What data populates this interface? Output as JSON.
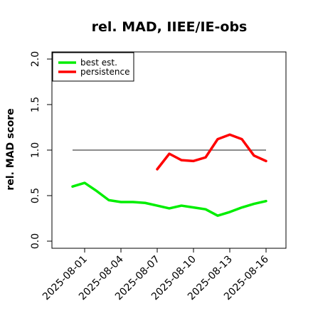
{
  "chart_data": {
    "type": "line",
    "title": "rel. MAD, IIEE/IE-obs",
    "ylabel": "rel. MAD score",
    "xlabel": "",
    "x": [
      "2025-07-31",
      "2025-08-01",
      "2025-08-02",
      "2025-08-03",
      "2025-08-04",
      "2025-08-05",
      "2025-08-06",
      "2025-08-07",
      "2025-08-08",
      "2025-08-09",
      "2025-08-10",
      "2025-08-11",
      "2025-08-12",
      "2025-08-13",
      "2025-08-14",
      "2025-08-15",
      "2025-08-16"
    ],
    "x_tick_labels": [
      "2025-08-01",
      "2025-08-04",
      "2025-08-07",
      "2025-08-10",
      "2025-08-13",
      "2025-08-16"
    ],
    "y_ticks": [
      "0.0",
      "0.5",
      "1.0",
      "1.5",
      "2.0"
    ],
    "ylim": [
      0,
      2.05
    ],
    "reference_line": 1.0,
    "series": [
      {
        "name": "best est.",
        "color": "#00ee00",
        "values": [
          0.6,
          0.64,
          0.55,
          0.45,
          0.43,
          0.43,
          0.42,
          0.39,
          0.36,
          0.39,
          0.37,
          0.35,
          0.28,
          0.32,
          0.37,
          0.41,
          0.44
        ]
      },
      {
        "name": "persistence",
        "color": "#ff0000",
        "values": [
          null,
          null,
          null,
          null,
          null,
          null,
          null,
          0.79,
          0.96,
          0.89,
          0.88,
          0.92,
          1.12,
          1.17,
          1.12,
          0.94,
          0.88
        ]
      }
    ],
    "legend": "top-left",
    "grid": false,
    "reference_line_color": "#666666"
  }
}
